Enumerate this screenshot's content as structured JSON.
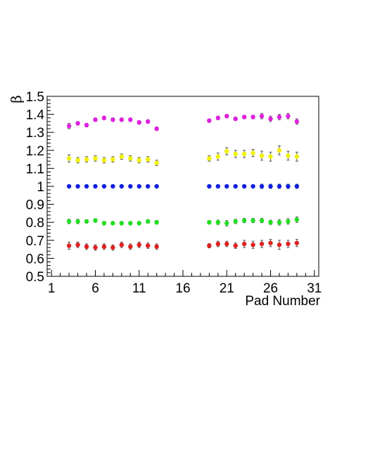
{
  "chart_data": {
    "type": "scatter",
    "title": "",
    "xlabel": "Pad Number",
    "ylabel": "β",
    "xlim": [
      0.5,
      31.5
    ],
    "ylim": [
      0.5,
      1.5
    ],
    "x_ticks": [
      1,
      6,
      11,
      16,
      21,
      26,
      31
    ],
    "y_ticks": [
      0.5,
      0.6,
      0.7,
      0.8,
      0.9,
      1,
      1.1,
      1.2,
      1.3,
      1.4,
      1.5
    ],
    "grid": false,
    "legend": "none",
    "marker": "circle",
    "x": [
      3,
      4,
      5,
      6,
      7,
      8,
      9,
      10,
      11,
      12,
      13,
      19,
      20,
      21,
      22,
      23,
      24,
      25,
      26,
      27,
      28,
      29
    ],
    "series": [
      {
        "color": "#e020e0",
        "values": [
          1.335,
          1.35,
          1.34,
          1.37,
          1.38,
          1.37,
          1.37,
          1.37,
          1.355,
          1.36,
          1.32,
          1.365,
          1.38,
          1.39,
          1.375,
          1.385,
          1.385,
          1.39,
          1.375,
          1.385,
          1.39,
          1.36
        ],
        "errors": [
          0.015,
          0.01,
          0.01,
          0.01,
          0.01,
          0.01,
          0.01,
          0.01,
          0.01,
          0.01,
          0.01,
          0.01,
          0.01,
          0.01,
          0.01,
          0.01,
          0.01,
          0.015,
          0.015,
          0.015,
          0.015,
          0.015
        ]
      },
      {
        "color": "#f0f000",
        "values": [
          1.155,
          1.145,
          1.15,
          1.155,
          1.145,
          1.15,
          1.165,
          1.155,
          1.145,
          1.15,
          1.13,
          1.155,
          1.165,
          1.195,
          1.18,
          1.18,
          1.185,
          1.17,
          1.165,
          1.2,
          1.17,
          1.165
        ],
        "errors": [
          0.02,
          0.015,
          0.015,
          0.015,
          0.015,
          0.015,
          0.015,
          0.015,
          0.015,
          0.015,
          0.015,
          0.015,
          0.02,
          0.02,
          0.02,
          0.02,
          0.02,
          0.025,
          0.025,
          0.025,
          0.025,
          0.025
        ]
      },
      {
        "color": "#1020e0",
        "values": [
          1.0,
          1.0,
          1.0,
          1.0,
          1.0,
          1.0,
          1.0,
          1.0,
          1.0,
          1.0,
          1.0,
          1.0,
          1.0,
          1.0,
          1.0,
          1.0,
          1.0,
          1.0,
          1.0,
          1.0,
          1.0,
          1.0
        ],
        "errors": [
          0.008,
          0.008,
          0.008,
          0.008,
          0.008,
          0.008,
          0.008,
          0.008,
          0.008,
          0.008,
          0.008,
          0.008,
          0.008,
          0.008,
          0.008,
          0.008,
          0.008,
          0.012,
          0.012,
          0.012,
          0.012,
          0.012
        ]
      },
      {
        "color": "#20e020",
        "values": [
          0.805,
          0.805,
          0.805,
          0.81,
          0.795,
          0.795,
          0.795,
          0.795,
          0.795,
          0.805,
          0.8,
          0.8,
          0.8,
          0.795,
          0.805,
          0.81,
          0.81,
          0.81,
          0.8,
          0.8,
          0.805,
          0.815
        ],
        "errors": [
          0.012,
          0.012,
          0.01,
          0.01,
          0.01,
          0.01,
          0.01,
          0.01,
          0.01,
          0.01,
          0.01,
          0.01,
          0.012,
          0.015,
          0.012,
          0.012,
          0.012,
          0.012,
          0.012,
          0.015,
          0.015,
          0.015
        ]
      },
      {
        "color": "#e02020",
        "values": [
          0.67,
          0.675,
          0.665,
          0.66,
          0.665,
          0.66,
          0.675,
          0.665,
          0.675,
          0.67,
          0.665,
          0.67,
          0.68,
          0.68,
          0.67,
          0.68,
          0.675,
          0.68,
          0.685,
          0.675,
          0.68,
          0.685
        ],
        "errors": [
          0.02,
          0.015,
          0.015,
          0.015,
          0.015,
          0.015,
          0.015,
          0.015,
          0.015,
          0.015,
          0.015,
          0.012,
          0.015,
          0.015,
          0.015,
          0.02,
          0.02,
          0.02,
          0.02,
          0.025,
          0.02,
          0.02
        ]
      }
    ]
  }
}
